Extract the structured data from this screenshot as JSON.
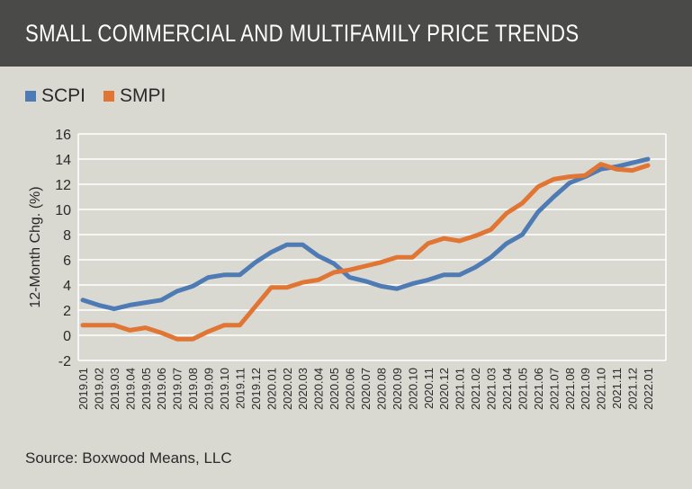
{
  "header": {
    "title": "SMALL COMMERCIAL AND MULTIFAMILY PRICE TRENDS"
  },
  "source": "Source: Boxwood Means, LLC",
  "chart_data": {
    "type": "line",
    "title": "SMALL COMMERCIAL AND MULTIFAMILY PRICE TRENDS",
    "ylabel": "12-Month Chg. (%)",
    "xlabel": "",
    "ylim": [
      -2,
      16
    ],
    "yticks": [
      "16",
      "14",
      "12",
      "10",
      "8",
      "6",
      "4",
      "2",
      "0",
      "-2"
    ],
    "grid": true,
    "legend": "top-left",
    "categories": [
      "2019.01",
      "2019.02",
      "2019.03",
      "2019.04",
      "2019.05",
      "2019.06",
      "2019.07",
      "2019.08",
      "2019.09",
      "2019.10",
      "2019.11",
      "2019.12",
      "2020.01",
      "2020.02",
      "2020.03",
      "2020.04",
      "2020.05",
      "2020.06",
      "2020.07",
      "2020.08",
      "2020.09",
      "2020.10",
      "2020.11",
      "2020.12",
      "2021.01",
      "2021.02",
      "2021.03",
      "2021.04",
      "2021.05",
      "2021.06",
      "2021.07",
      "2021.08",
      "2021.09",
      "2021.10",
      "2021.11",
      "2021.12",
      "2022.01"
    ],
    "series": [
      {
        "name": "SCPI",
        "color": "#4f7bb5",
        "values": [
          2.8,
          2.4,
          2.1,
          2.4,
          2.6,
          2.8,
          3.5,
          3.9,
          4.6,
          4.8,
          4.8,
          5.8,
          6.6,
          7.2,
          7.2,
          6.3,
          5.7,
          4.6,
          4.3,
          3.9,
          3.7,
          4.1,
          4.4,
          4.8,
          4.8,
          5.4,
          6.2,
          7.3,
          8.0,
          9.8,
          11.0,
          12.1,
          12.6,
          13.2,
          13.4,
          13.7,
          14.0
        ]
      },
      {
        "name": "SMPI",
        "color": "#e07534",
        "values": [
          0.8,
          0.8,
          0.8,
          0.4,
          0.6,
          0.2,
          -0.3,
          -0.3,
          0.3,
          0.8,
          0.8,
          2.3,
          3.8,
          3.8,
          4.2,
          4.4,
          5.0,
          5.2,
          5.5,
          5.8,
          6.2,
          6.2,
          7.3,
          7.7,
          7.5,
          7.9,
          8.4,
          9.7,
          10.5,
          11.8,
          12.4,
          12.6,
          12.7,
          13.6,
          13.2,
          13.1,
          13.5
        ]
      }
    ]
  }
}
